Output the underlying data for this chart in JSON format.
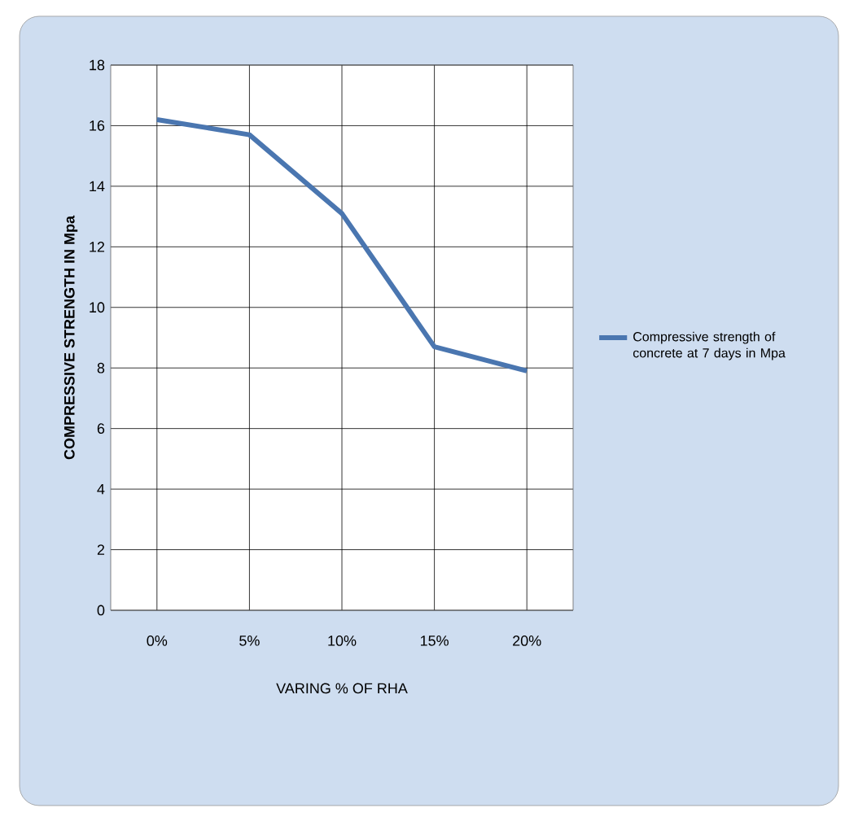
{
  "chart_data": {
    "type": "line",
    "xlabel": "VARING % OF RHA",
    "ylabel": "COMPRESSIVE STRENGTH  IN Mpa",
    "categories": [
      "0%",
      "5%",
      "10%",
      "15%",
      "20%"
    ],
    "series": [
      {
        "name": "Compressive strength of concrete at 7 days in Mpa",
        "color": "#4a76b0",
        "values": [
          16.2,
          15.7,
          13.1,
          8.7,
          7.9
        ]
      }
    ],
    "ylim": [
      0,
      18
    ],
    "yticks": [
      0,
      2,
      4,
      6,
      8,
      10,
      12,
      14,
      16,
      18
    ],
    "grid": true,
    "legend": "right",
    "marker": "none",
    "line_style": "solid"
  }
}
